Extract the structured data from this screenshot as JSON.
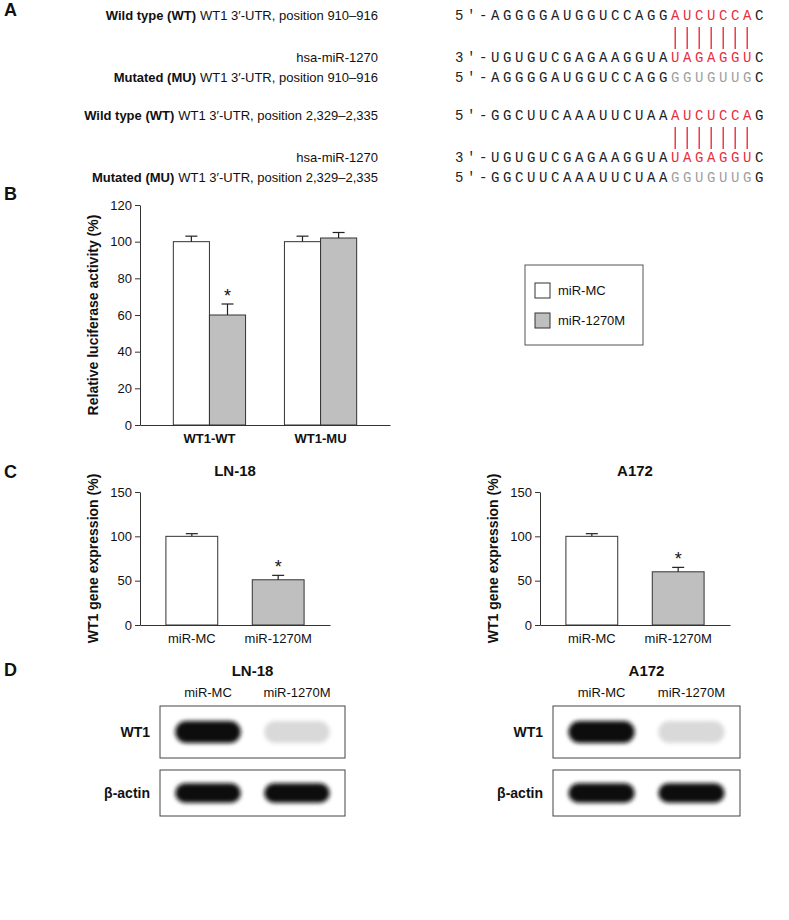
{
  "sequences": {
    "panel": "A",
    "blocks": [
      {
        "rows": [
          {
            "label_bold": "Wild type (WT)",
            "label": "WT1 3′-UTR, position 910–916",
            "segments": [
              {
                "text": "5′-AGGGGAUGGUCCAGG"
              },
              {
                "text": "AUCUCCA",
                "color": "#e8303c"
              },
              {
                "text": "C"
              }
            ]
          },
          {
            "label": "hsa-miR-1270",
            "segments": [
              {
                "text": "3′-UGUGUCGAGAAGGUA"
              },
              {
                "text": "UAGAGGU",
                "color": "#e8303c"
              },
              {
                "text": "C"
              }
            ]
          },
          {
            "label_bold": "Mutated (MU)",
            "label": "WT1 3′-UTR, position 910–916",
            "segments": [
              {
                "text": "5′-AGGGGAUGGUCCAGG"
              },
              {
                "text": "GGUGUUG",
                "color": "#a0a0a0"
              },
              {
                "text": "C"
              }
            ]
          }
        ]
      },
      {
        "rows": [
          {
            "label_bold": "Wild type (WT)",
            "label": "WT1 3′-UTR, position 2,329–2,335",
            "segments": [
              {
                "text": "5′-GGCUUCAAAUUCUAA"
              },
              {
                "text": "AUCUCCA",
                "color": "#e8303c"
              },
              {
                "text": "G"
              }
            ]
          },
          {
            "label": "hsa-miR-1270",
            "segments": [
              {
                "text": "3′-UGUGUCGAGAAGGUA"
              },
              {
                "text": "UAGAGGU",
                "color": "#e8303c"
              },
              {
                "text": "C"
              }
            ]
          },
          {
            "label_bold": "Mutated (MU)",
            "label": "WT1 3′-UTR, position 2,329–2,335",
            "segments": [
              {
                "text": "5′-GGCUUCAAAUUCUAA"
              },
              {
                "text": "GGUGUUG",
                "color": "#a0a0a0"
              },
              {
                "text": "G"
              }
            ]
          }
        ]
      }
    ]
  },
  "chart_data": [
    {
      "type": "bar",
      "panel": "B",
      "categories": [
        "WT1-WT",
        "WT1-MU"
      ],
      "series": [
        {
          "name": "miR-MC",
          "color": "#ffffff",
          "values": [
            100,
            100
          ],
          "errors": [
            3,
            3
          ],
          "significance": [
            null,
            null
          ]
        },
        {
          "name": "miR-1270M",
          "color": "#bfbfbf",
          "values": [
            60,
            102
          ],
          "errors": [
            6,
            3
          ],
          "significance": [
            "*",
            null
          ]
        }
      ],
      "ylabel": "Relative luciferase activity (%)",
      "ylim": [
        0,
        120
      ],
      "yticks": [
        0,
        20,
        40,
        60,
        80,
        100,
        120
      ],
      "legend": "right"
    },
    {
      "type": "bar",
      "panel": "C",
      "title": "LN-18",
      "categories": [
        "miR-MC",
        "miR-1270M"
      ],
      "values": [
        100,
        51
      ],
      "errors": [
        3,
        5
      ],
      "significance": [
        null,
        "*"
      ],
      "colors": [
        "#ffffff",
        "#bfbfbf"
      ],
      "ylabel": "WT1 gene expression (%)",
      "ylim": [
        0,
        150
      ],
      "yticks": [
        0,
        50,
        100,
        150
      ]
    },
    {
      "type": "bar",
      "title": "A172",
      "categories": [
        "miR-MC",
        "miR-1270M"
      ],
      "values": [
        100,
        60
      ],
      "errors": [
        3,
        5
      ],
      "significance": [
        null,
        "*"
      ],
      "colors": [
        "#ffffff",
        "#bfbfbf"
      ],
      "ylabel": "WT1 gene expression (%)",
      "ylim": [
        0,
        150
      ],
      "yticks": [
        0,
        50,
        100,
        150
      ]
    }
  ],
  "blots": {
    "panel": "D",
    "panels": [
      {
        "title": "LN-18",
        "lanes": [
          "miR-MC",
          "miR-1270M"
        ],
        "rows": [
          {
            "name": "WT1",
            "intensity": [
              1,
              0.15
            ]
          },
          {
            "name": "β-actin",
            "intensity": [
              1,
              1
            ]
          }
        ]
      },
      {
        "title": "A172",
        "lanes": [
          "miR-MC",
          "miR-1270M"
        ],
        "rows": [
          {
            "name": "WT1",
            "intensity": [
              1,
              0.15
            ]
          },
          {
            "name": "β-actin",
            "intensity": [
              1,
              1
            ]
          }
        ]
      }
    ]
  }
}
